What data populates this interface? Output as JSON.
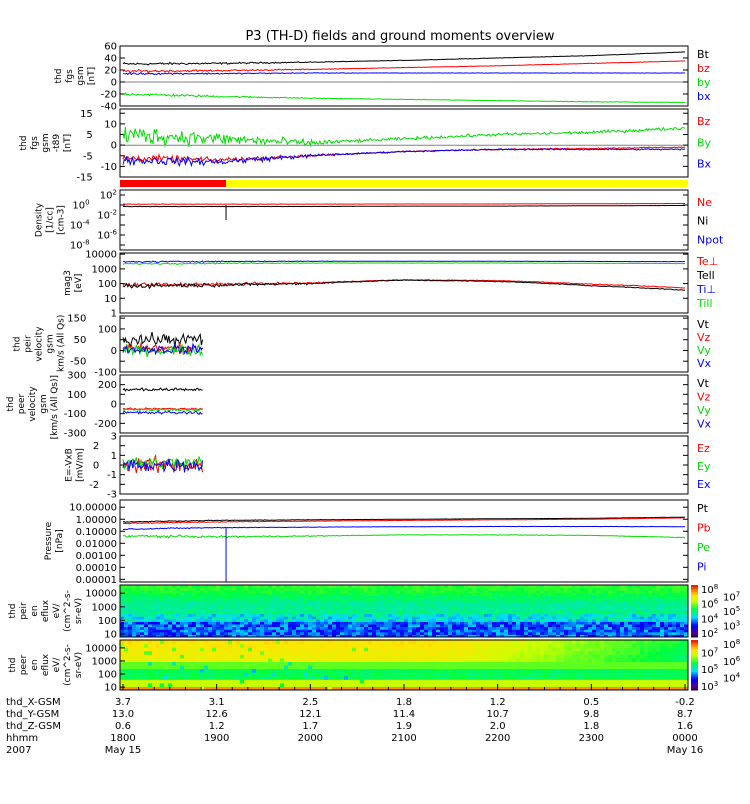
{
  "chart_data": {
    "type": "line",
    "title": "P3 (TH-D) fields and ground moments overview",
    "x_hours": [
      18,
      19,
      20,
      21,
      22,
      23,
      24
    ],
    "panels": [
      {
        "id": "fgs-gsm",
        "ylabel": [
          "thd",
          "fgs",
          "gsm",
          "[nT]"
        ],
        "yscale": "linear",
        "ylim": [
          -40,
          60
        ],
        "yticks": [
          "60",
          "40",
          "20",
          "0",
          "-20",
          "-40"
        ],
        "ytick_values": [
          60,
          40,
          20,
          0,
          -20,
          -40
        ],
        "series": [
          {
            "name": "Bt",
            "color": "#000000",
            "values": [
              30,
              31,
              33,
              36,
              40,
              44,
              50
            ],
            "noise": 2
          },
          {
            "name": "bz",
            "color": "#ff0000",
            "values": [
              18,
              19,
              21,
              24,
              27,
              31,
              35
            ],
            "noise": 2
          },
          {
            "name": "by",
            "color": "#00dd00",
            "values": [
              -20,
              -24,
              -27,
              -29,
              -31,
              -33,
              -34
            ],
            "noise": 2
          },
          {
            "name": "bx",
            "color": "#0000ff",
            "values": [
              14,
              14,
              15,
              15,
              15,
              15,
              15
            ],
            "noise": 1.5
          }
        ]
      },
      {
        "id": "fgs-gsm-t89",
        "ylabel": [
          "thd",
          "fgs",
          "gsm",
          "-t89",
          "[nT]"
        ],
        "yscale": "linear",
        "ylim": [
          -15,
          17
        ],
        "yticks": [
          "15",
          "10",
          "5",
          "0",
          "-5",
          "-10",
          "-15"
        ],
        "ytick_values": [
          15,
          10,
          5,
          0,
          -5,
          -10,
          -15
        ],
        "series": [
          {
            "name": "Bz",
            "color": "#ff0000",
            "values": [
              -6,
              -7,
              -5,
              -3,
              -2,
              -1.5,
              -1
            ],
            "noise": 1.5
          },
          {
            "name": "By",
            "color": "#00dd00",
            "values": [
              5,
              3,
              1,
              3,
              5,
              6,
              8
            ],
            "noise": 4
          },
          {
            "name": "Bx",
            "color": "#0000ff",
            "values": [
              -7,
              -8,
              -5,
              -3,
              -2,
              -2,
              -2
            ],
            "noise": 2
          }
        ]
      },
      {
        "id": "density",
        "ylabel": [
          "Density",
          "[1/cc]",
          "[cm-3]"
        ],
        "yscale": "log",
        "ylim": [
          1e-09,
          1000.0
        ],
        "yticks": [
          "10^2",
          "10^0",
          "10^-2",
          "10^-4",
          "10^-6",
          "10^-8"
        ],
        "ytick_values": [
          100,
          1,
          0.01,
          0.0001,
          1e-06,
          1e-08
        ],
        "series": [
          {
            "name": "Ne",
            "color": "#ff0000",
            "values": [
              1.5,
              1.5,
              1.5,
              1.6,
              1.6,
              1.8,
              2
            ],
            "noise": 0.05
          },
          {
            "name": "Ni",
            "color": "#000000",
            "values": [
              0.5,
              0.5,
              0.5,
              0.6,
              0.6,
              0.7,
              0.8
            ],
            "noise": 0.05
          },
          {
            "name": "Npot",
            "color": "#0000ff",
            "values": [],
            "noise": 0
          }
        ]
      },
      {
        "id": "temperature",
        "ylabel": [
          "mag3",
          "[eV]"
        ],
        "yscale": "log",
        "ylim": [
          1,
          12000
        ],
        "yticks": [
          "10000",
          "1000",
          "100",
          "10",
          "1"
        ],
        "ytick_values": [
          10000,
          1000,
          100,
          10,
          1
        ],
        "series": [
          {
            "name": "Te⊥",
            "color": "#ff0000",
            "values": [
              80,
              90,
              110,
              180,
              160,
              90,
              50
            ],
            "noise": 0.15
          },
          {
            "name": "Tell",
            "color": "#000000",
            "values": [
              70,
              80,
              100,
              170,
              140,
              70,
              35
            ],
            "noise": 0.15
          },
          {
            "name": "Ti⊥",
            "color": "#0000ff",
            "values": [
              3000,
              3200,
              3300,
              3300,
              3300,
              3200,
              3100
            ],
            "noise": 0.05
          },
          {
            "name": "Till",
            "color": "#00dd00",
            "values": [
              2200,
              2400,
              2500,
              2500,
              2500,
              2400,
              2300
            ],
            "noise": 0.05
          }
        ]
      },
      {
        "id": "peir-velocity",
        "ylabel": [
          "thd",
          "peir",
          "velocity",
          "gsm",
          "km/s (All Qs)"
        ],
        "yscale": "linear",
        "ylim": [
          -100,
          160
        ],
        "x_end_hour": 18.85,
        "yticks": [
          "150",
          "100",
          "50",
          "0",
          "-50",
          "-100"
        ],
        "ytick_values": [
          150,
          100,
          50,
          0,
          -50,
          -100
        ],
        "series": [
          {
            "name": "Vt",
            "color": "#000000",
            "values": [
              50,
              50
            ],
            "noise": 25
          },
          {
            "name": "Vz",
            "color": "#ff0000",
            "values": [
              10,
              10
            ],
            "noise": 20
          },
          {
            "name": "Vy",
            "color": "#00dd00",
            "values": [
              0,
              0
            ],
            "noise": 20
          },
          {
            "name": "Vx",
            "color": "#0000ff",
            "values": [
              5,
              5
            ],
            "noise": 20
          }
        ]
      },
      {
        "id": "peer-velocity",
        "ylabel": [
          "thd",
          "peer",
          "velocity",
          "gsm",
          "[km/s (All Qs)]"
        ],
        "yscale": "linear",
        "ylim": [
          -300,
          300
        ],
        "x_end_hour": 18.85,
        "yticks": [
          "300",
          "200",
          "100",
          "0",
          "-100",
          "-200",
          "-300"
        ],
        "ytick_values": [
          300,
          200,
          100,
          0,
          -100,
          -200,
          -300
        ],
        "series": [
          {
            "name": "Vt",
            "color": "#000000",
            "values": [
              150,
              150
            ],
            "noise": 15
          },
          {
            "name": "Vz",
            "color": "#ff0000",
            "values": [
              -50,
              -50
            ],
            "noise": 8
          },
          {
            "name": "Vy",
            "color": "#00dd00",
            "values": [
              -60,
              -60
            ],
            "noise": 8
          },
          {
            "name": "Vx",
            "color": "#0000ff",
            "values": [
              -90,
              -90
            ],
            "noise": 15
          }
        ]
      },
      {
        "id": "efield",
        "ylabel": [
          "E=-VxB",
          "[mV/m]"
        ],
        "yscale": "linear",
        "ylim": [
          -3,
          3
        ],
        "x_end_hour": 18.85,
        "yticks": [
          "3",
          "2",
          "1",
          "0",
          "-1",
          "-2",
          "-3"
        ],
        "ytick_values": [
          3,
          2,
          1,
          0,
          -1,
          -2,
          -3
        ],
        "series": [
          {
            "name": "Ez",
            "color": "#ff0000",
            "values": [
              0,
              0
            ],
            "noise": 0.7
          },
          {
            "name": "Ey",
            "color": "#00dd00",
            "values": [
              0.2,
              0.2
            ],
            "noise": 0.6
          },
          {
            "name": "Ex",
            "color": "#0000ff",
            "values": [
              0,
              0
            ],
            "noise": 0.6
          }
        ]
      },
      {
        "id": "pressure",
        "ylabel": [
          "Pressure",
          "[nPa]"
        ],
        "yscale": "log",
        "ylim": [
          1e-05,
          10
        ],
        "yticks": [
          "10.00000",
          "1.00000",
          "0.10000",
          "0.01000",
          "0.00100",
          "0.00010",
          "0.00001"
        ],
        "ytick_values": [
          10,
          1,
          0.1,
          0.01,
          0.001,
          0.0001,
          1e-05
        ],
        "series": [
          {
            "name": "Pt",
            "color": "#000000",
            "values": [
              0.6,
              0.8,
              0.9,
              1,
              1.1,
              1.2,
              1.5
            ],
            "noise": 0.04
          },
          {
            "name": "Pb",
            "color": "#ff0000",
            "values": [
              0.45,
              0.6,
              0.7,
              0.8,
              0.9,
              1.0,
              1.3
            ],
            "noise": 0.04
          },
          {
            "name": "Pe",
            "color": "#00dd00",
            "values": [
              0.04,
              0.035,
              0.04,
              0.05,
              0.05,
              0.045,
              0.03
            ],
            "noise": 0.1
          },
          {
            "name": "Pi",
            "color": "#0000ff",
            "values": [
              0.15,
              0.2,
              0.22,
              0.24,
              0.25,
              0.25,
              0.24
            ],
            "noise": 0.05
          }
        ]
      }
    ],
    "spectrograms": [
      {
        "id": "peir-en-eflux",
        "ylabel": [
          "thd",
          "peir",
          "en",
          "eflux",
          "eV/",
          "(cm^2-s-",
          "sr-eV)"
        ],
        "yticks": [
          "10000",
          "1000",
          "100",
          "10"
        ],
        "colorbar_ticks": [
          "10^8",
          "10^7",
          "10^6",
          "10^5",
          "10^4",
          "10^3",
          "10^2"
        ],
        "zlim": [
          100,
          100000000.0
        ]
      },
      {
        "id": "peer-en-eflux",
        "ylabel": [
          "thd",
          "peer",
          "en",
          "eflux",
          "eV/",
          "(cm^2-s-",
          "sr-eV)"
        ],
        "yticks": [
          "10000",
          "1000",
          "100",
          "10"
        ],
        "colorbar_ticks": [
          "10^8",
          "10^7",
          "10^6",
          "10^5",
          "10^4",
          "10^3"
        ],
        "zlim": [
          1000,
          100000000.0
        ]
      }
    ],
    "status_bar": {
      "colors": [
        "#ff0000",
        "#ffff00"
      ],
      "switch_hour": 19.1
    },
    "x_axis": {
      "rows": [
        {
          "label": "thd_X-GSM",
          "values": [
            "3.7",
            "3.1",
            "2.5",
            "1.8",
            "1.2",
            "0.5",
            "-0.2"
          ]
        },
        {
          "label": "thd_Y-GSM",
          "values": [
            "13.0",
            "12.6",
            "12.1",
            "11.4",
            "10.7",
            "9.8",
            "8.7"
          ]
        },
        {
          "label": "thd_Z-GSM",
          "values": [
            "0.6",
            "1.2",
            "1.7",
            "1.9",
            "2.0",
            "1.8",
            "1.6"
          ]
        },
        {
          "label": "hhmm",
          "values": [
            "1800",
            "1900",
            "2000",
            "2100",
            "2200",
            "2300",
            "0000"
          ]
        }
      ],
      "date_label": "2007",
      "dates": [
        "May 15",
        "May 16"
      ]
    }
  }
}
